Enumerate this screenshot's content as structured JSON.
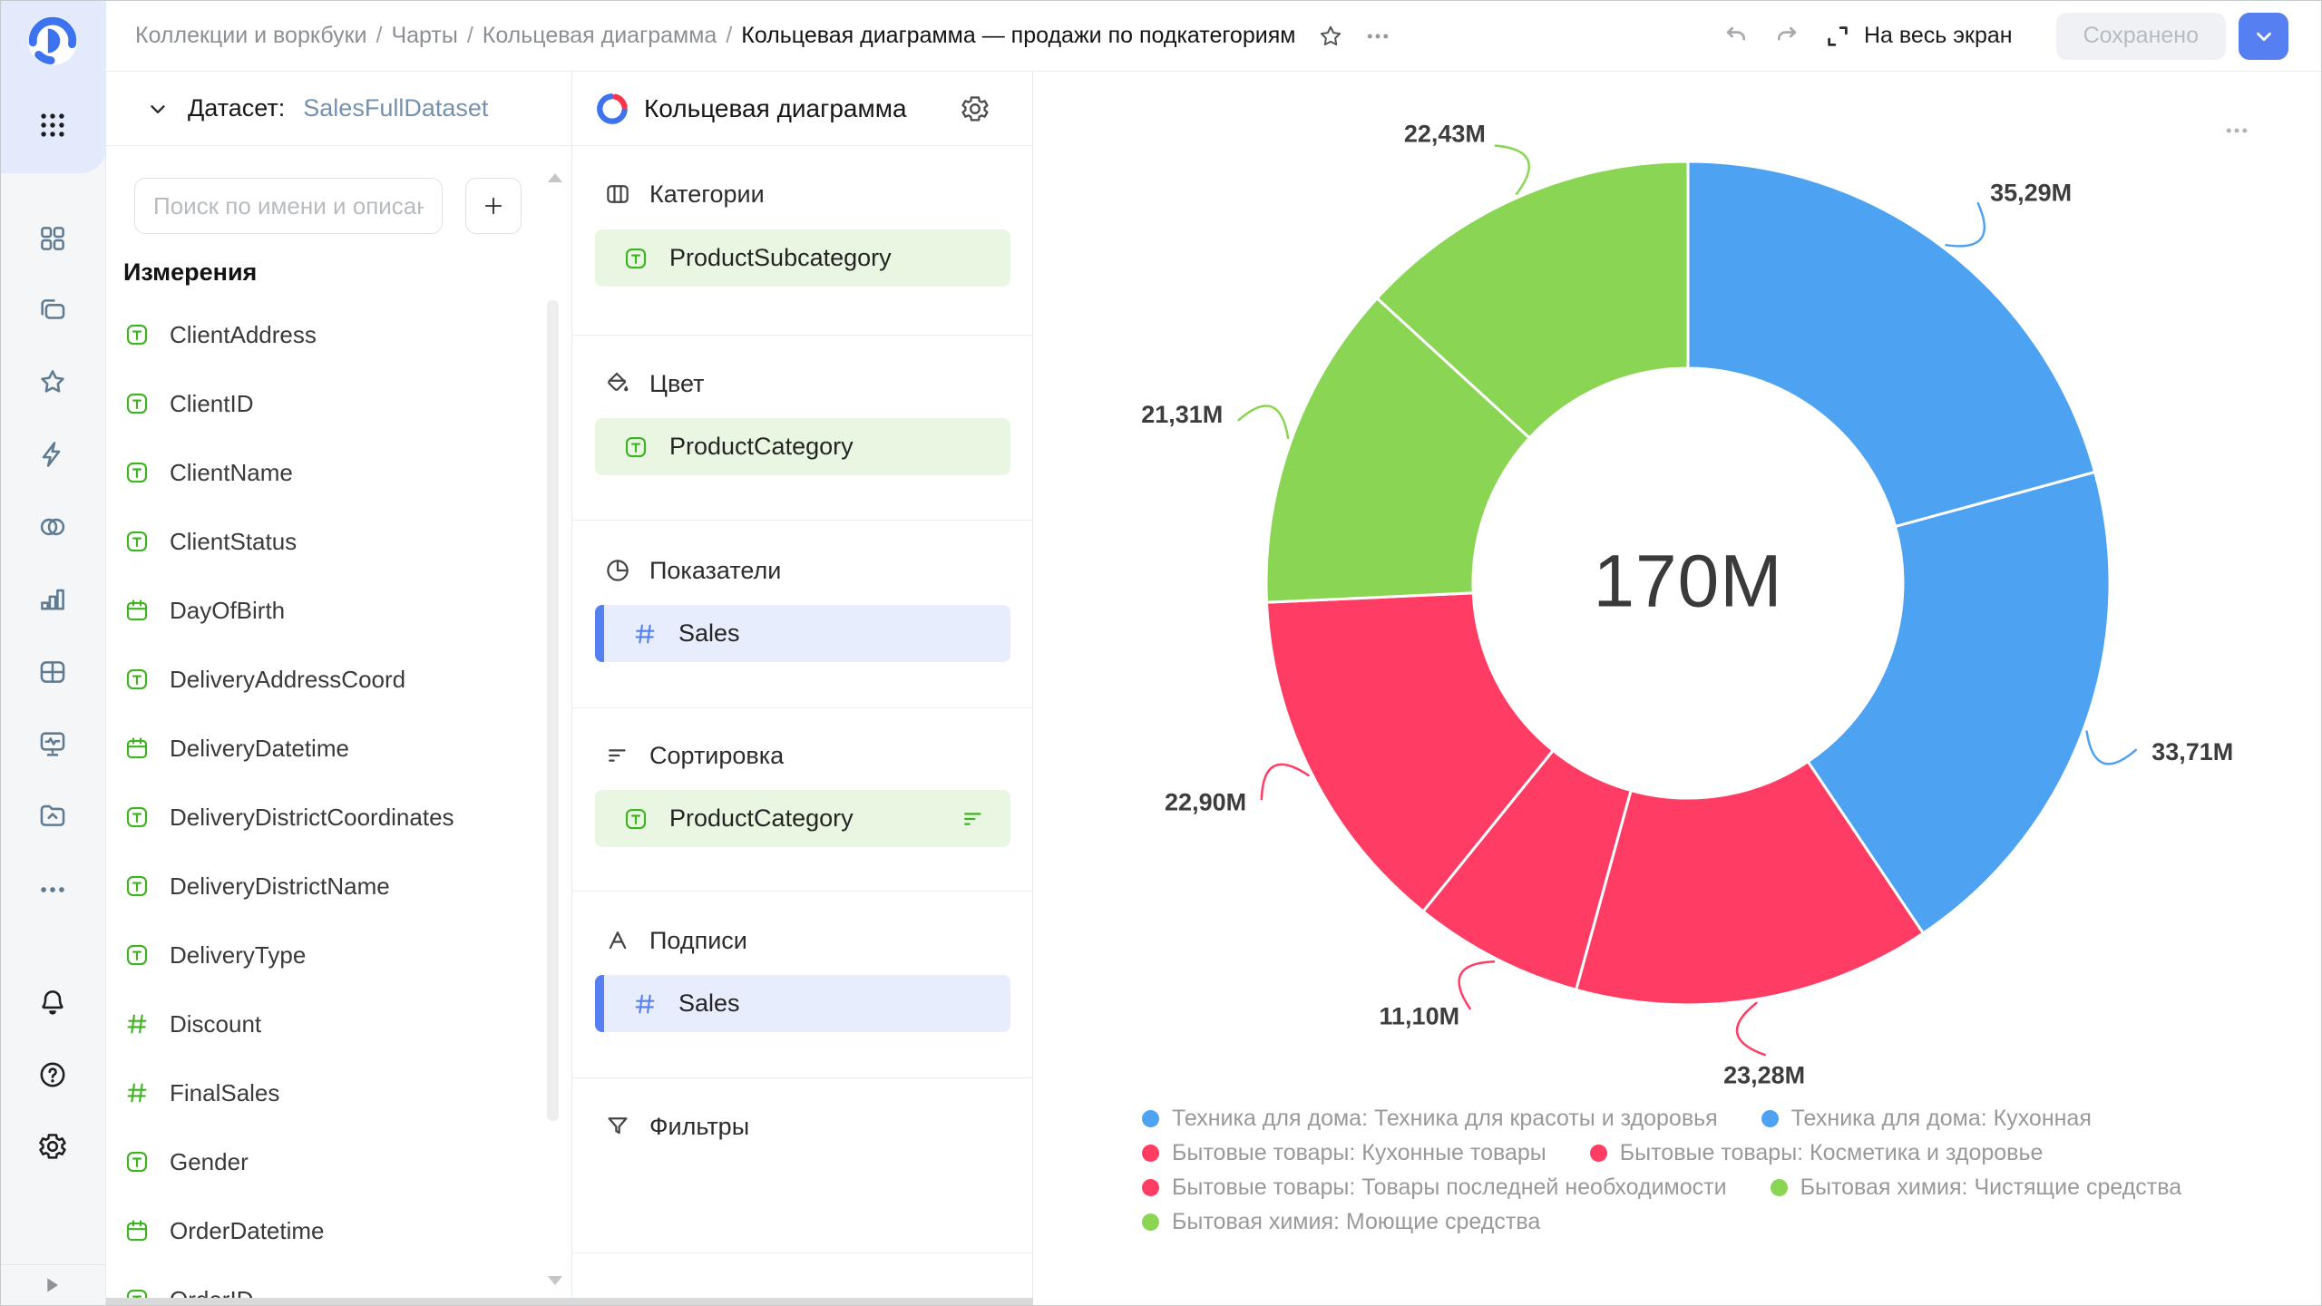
{
  "topbar": {
    "breadcrumbs": [
      "Коллекции и воркбуки",
      "Чарты",
      "Кольцевая диаграмма"
    ],
    "title": "Кольцевая диаграмма — продажи по подкатегориям",
    "fullscreen_label": "На весь экран",
    "saved_label": "Сохранено",
    "icons": [
      "favorite-star-icon",
      "more-ellipsis-icon",
      "undo-icon",
      "redo-icon",
      "fullscreen-expand-icon",
      "save-menu-chevron-icon"
    ]
  },
  "sidebar": {
    "top_icons": [
      {
        "name": "collections-grid-icon",
        "glyph": "squares4"
      },
      {
        "name": "workbooks-folders-icon",
        "glyph": "folders"
      },
      {
        "name": "favorites-star-icon",
        "glyph": "star"
      },
      {
        "name": "editor-bolt-icon",
        "glyph": "bolt"
      },
      {
        "name": "connections-icon",
        "glyph": "circles2"
      },
      {
        "name": "charts-bar-icon",
        "glyph": "barchart"
      },
      {
        "name": "dashboards-table-icon",
        "glyph": "tablegrid"
      },
      {
        "name": "monitoring-icon",
        "glyph": "monitor"
      },
      {
        "name": "storage-folder-icon",
        "glyph": "foldercloud"
      },
      {
        "name": "more-ellipsis-icon",
        "glyph": "dots"
      }
    ],
    "bottom_icons": [
      {
        "name": "notifications-bell-icon",
        "glyph": "bell"
      },
      {
        "name": "help-icon",
        "glyph": "help"
      },
      {
        "name": "settings-gear-icon",
        "glyph": "gear"
      }
    ],
    "footer_icon": {
      "name": "expand-rail-play-icon",
      "glyph": "play"
    }
  },
  "dataset": {
    "label": "Датасет:",
    "name": "SalesFullDataset",
    "search_placeholder": "Поиск по имени и описанию",
    "dimensions_heading": "Измерения",
    "fields": [
      {
        "name": "ClientAddress",
        "type": "text"
      },
      {
        "name": "ClientID",
        "type": "text"
      },
      {
        "name": "ClientName",
        "type": "text"
      },
      {
        "name": "ClientStatus",
        "type": "text"
      },
      {
        "name": "DayOfBirth",
        "type": "date"
      },
      {
        "name": "DeliveryAddressCoord",
        "type": "text"
      },
      {
        "name": "DeliveryDatetime",
        "type": "date"
      },
      {
        "name": "DeliveryDistrictCoordinates",
        "type": "text"
      },
      {
        "name": "DeliveryDistrictName",
        "type": "text"
      },
      {
        "name": "DeliveryType",
        "type": "text"
      },
      {
        "name": "Discount",
        "type": "number"
      },
      {
        "name": "FinalSales",
        "type": "number"
      },
      {
        "name": "Gender",
        "type": "text"
      },
      {
        "name": "OrderDatetime",
        "type": "date"
      },
      {
        "name": "OrderID",
        "type": "text"
      }
    ]
  },
  "config": {
    "title": "Кольцевая диаграмма",
    "sections": [
      {
        "label": "Категории",
        "icon": "categories-columns-icon",
        "glyph": "columns",
        "pills": [
          {
            "name": "ProductSubcategory",
            "kind": "dimension",
            "type": "text"
          }
        ]
      },
      {
        "label": "Цвет",
        "icon": "color-paint-bucket-icon",
        "glyph": "paint",
        "pills": [
          {
            "name": "ProductCategory",
            "kind": "dimension",
            "type": "text"
          }
        ]
      },
      {
        "label": "Показатели",
        "icon": "measures-pie-icon",
        "glyph": "pie",
        "pills": [
          {
            "name": "Sales",
            "kind": "measure",
            "type": "number"
          }
        ]
      },
      {
        "label": "Сортировка",
        "icon": "sort-icon",
        "glyph": "sort",
        "pills": [
          {
            "name": "ProductCategory",
            "kind": "dimension",
            "type": "text",
            "sortable": true
          }
        ]
      },
      {
        "label": "Подписи",
        "icon": "labels-a-icon",
        "glyph": "labelsA",
        "pills": [
          {
            "name": "Sales",
            "kind": "measure",
            "type": "number"
          }
        ]
      },
      {
        "label": "Фильтры",
        "icon": "filters-funnel-icon",
        "glyph": "funnel",
        "pills": []
      }
    ]
  },
  "chart_data": {
    "type": "pie",
    "variant": "donut",
    "center_total": "170M",
    "total": 170.02,
    "legend_position": "bottom",
    "start_angle": "top",
    "direction": "clockwise",
    "slices": [
      {
        "name": "Техника для дома: Техника для красоты и здоровья",
        "value": 35.29,
        "label": "35,29M",
        "color": "#4DA2F1"
      },
      {
        "name": "Техника для дома: Кухонная",
        "value": 33.71,
        "label": "33,71M",
        "color": "#4DA2F1"
      },
      {
        "name": "Бытовые товары: Кухонные товары",
        "value": 23.28,
        "label": "23,28M",
        "color": "#FF3D64"
      },
      {
        "name": "Бытовые товары: Косметика и здоровье",
        "value": 11.1,
        "label": "11,10M",
        "color": "#FF3D64"
      },
      {
        "name": "Бытовые товары: Товары последней необходимости",
        "value": 22.9,
        "label": "22,90M",
        "color": "#FF3D64"
      },
      {
        "name": "Бытовая химия: Чистящие средства",
        "value": 21.31,
        "label": "21,31M",
        "color": "#8AD554"
      },
      {
        "name": "Бытовая химия: Моющие средства",
        "value": 22.43,
        "label": "22,43M",
        "color": "#8AD554"
      }
    ]
  },
  "colors": {
    "accent_blue": "#5680F2",
    "dimension_green": "#3DB320",
    "pill_green_bg": "#E9F7E2",
    "pill_blue_bg": "#E7EDFD",
    "series_blue": "#4DA2F1",
    "series_red": "#FF3D64",
    "series_green": "#8AD554"
  }
}
